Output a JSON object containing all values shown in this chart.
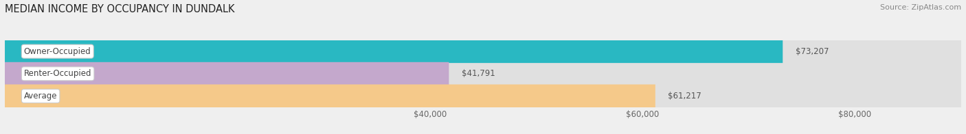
{
  "title": "MEDIAN INCOME BY OCCUPANCY IN DUNDALK",
  "source": "Source: ZipAtlas.com",
  "categories": [
    "Owner-Occupied",
    "Renter-Occupied",
    "Average"
  ],
  "values": [
    73207,
    41791,
    61217
  ],
  "labels": [
    "$73,207",
    "$41,791",
    "$61,217"
  ],
  "bar_colors": [
    "#29b8c2",
    "#c4a8cc",
    "#f5c98a"
  ],
  "xlim_max": 90000,
  "xticks": [
    40000,
    60000,
    80000
  ],
  "xticklabels": [
    "$40,000",
    "$60,000",
    "$80,000"
  ],
  "title_fontsize": 10.5,
  "source_fontsize": 8,
  "label_fontsize": 8.5,
  "value_fontsize": 8.5,
  "bar_height": 0.52,
  "background_color": "#efefef",
  "bar_bg_color": "#e0e0e0",
  "label_bg_color": "#ffffff"
}
